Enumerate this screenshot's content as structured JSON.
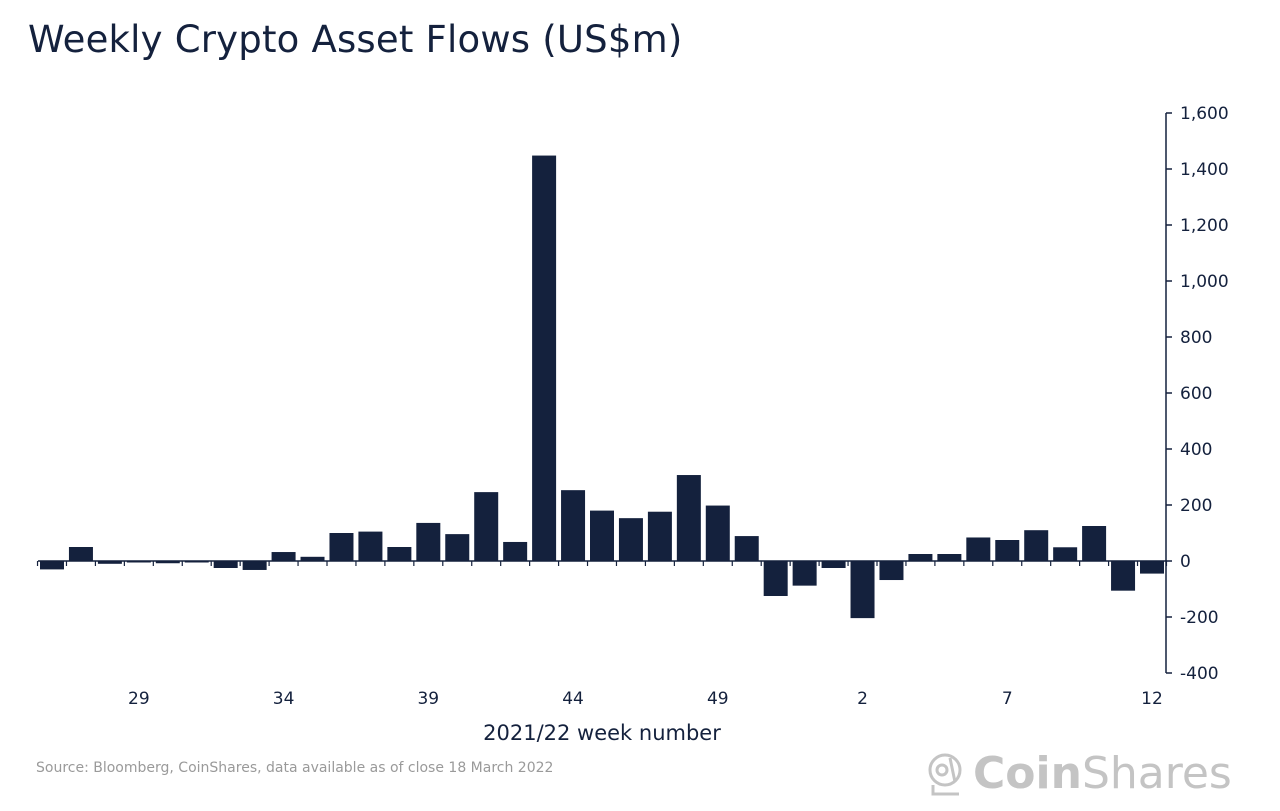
{
  "chart_data": {
    "type": "bar",
    "title": "Weekly Crypto Asset Flows (US$m)",
    "xlabel": "2021/22 week number",
    "ylabel": "",
    "ylim": [
      -400,
      1600
    ],
    "yticks": [
      -400,
      -200,
      0,
      200,
      400,
      600,
      800,
      1000,
      1200,
      1400,
      1600
    ],
    "ytick_labels": [
      "-400",
      "-200",
      "0",
      "200",
      "400",
      "600",
      "800",
      "1,000",
      "1,200",
      "1,400",
      "1,600"
    ],
    "y_axis_side": "right",
    "grid": false,
    "categories": [
      "26",
      "27",
      "28",
      "29",
      "30",
      "31",
      "32",
      "33",
      "34",
      "35",
      "36",
      "37",
      "38",
      "39",
      "40",
      "41",
      "42",
      "43",
      "44",
      "45",
      "46",
      "47",
      "48",
      "49",
      "50",
      "51",
      "52",
      "1",
      "2",
      "3",
      "4",
      "5",
      "6",
      "7",
      "8",
      "9",
      "10",
      "11",
      "12"
    ],
    "xtick_labels_shown": [
      "29",
      "34",
      "39",
      "44",
      "49",
      "2",
      "7",
      "12"
    ],
    "values": [
      -30,
      50,
      -10,
      -5,
      -8,
      -2,
      -25,
      -32,
      32,
      15,
      100,
      105,
      50,
      136,
      96,
      246,
      68,
      1448,
      253,
      180,
      153,
      176,
      307,
      198,
      89,
      -125,
      -88,
      -25,
      -204,
      -68,
      25,
      25,
      84,
      75,
      110,
      49,
      125,
      -106,
      -45
    ],
    "bar_color": "#14213d"
  },
  "source": "Source: Bloomberg, CoinShares, data available as of close 18 March 2022",
  "logo": {
    "part1": "Coin",
    "part2": "Shares"
  }
}
